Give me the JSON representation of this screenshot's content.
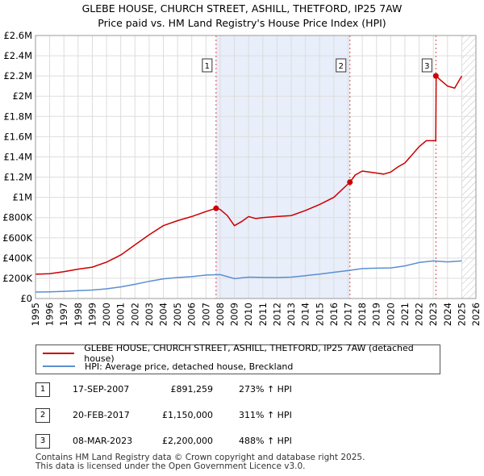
{
  "header": {
    "title": "GLEBE HOUSE, CHURCH STREET, ASHILL, THETFORD, IP25 7AW",
    "subtitle": "Price paid vs. HM Land Registry's House Price Index (HPI)"
  },
  "colors": {
    "property": "#cc0000",
    "hpi": "#5b8fd0",
    "shade": "#e8eefa",
    "grid": "#dddddd"
  },
  "chart_data": {
    "type": "line",
    "title": "GLEBE HOUSE, CHURCH STREET, ASHILL, THETFORD, IP25 7AW",
    "xlim": [
      1995,
      2026
    ],
    "ylim": [
      0,
      2600000
    ],
    "y_ticks": [
      0,
      200000,
      400000,
      600000,
      800000,
      1000000,
      1200000,
      1400000,
      1600000,
      1800000,
      2000000,
      2200000,
      2400000,
      2600000
    ],
    "y_tick_labels": [
      "£0",
      "£200K",
      "£400K",
      "£600K",
      "£800K",
      "£1M",
      "£1.2M",
      "£1.4M",
      "£1.6M",
      "£1.8M",
      "£2M",
      "£2.2M",
      "£2.4M",
      "£2.6M"
    ],
    "x_ticks": [
      "1995",
      "1996",
      "1997",
      "1998",
      "1999",
      "2000",
      "2001",
      "2002",
      "2003",
      "2004",
      "2005",
      "2006",
      "2007",
      "2008",
      "2009",
      "2010",
      "2011",
      "2012",
      "2013",
      "2014",
      "2015",
      "2016",
      "2017",
      "2018",
      "2019",
      "2020",
      "2021",
      "2022",
      "2023",
      "2024",
      "2025",
      "2026"
    ],
    "series": [
      {
        "name": "GLEBE HOUSE, CHURCH STREET, ASHILL, THETFORD, IP25 7AW (detached house)",
        "x": [
          1995,
          1996,
          1997,
          1998,
          1999,
          2000,
          2001,
          2002,
          2003,
          2004,
          2005,
          2006,
          2007,
          2007.71,
          2008,
          2008.5,
          2009,
          2009.5,
          2010,
          2010.5,
          2011,
          2012,
          2013,
          2014,
          2015,
          2016,
          2017.13,
          2017.5,
          2018,
          2019,
          2019.5,
          2020,
          2020.5,
          2021,
          2021.5,
          2022,
          2022.5,
          2023.17,
          2023.2,
          2023.5,
          2024,
          2024.5,
          2025
        ],
        "values": [
          240000,
          245000,
          265000,
          290000,
          310000,
          360000,
          430000,
          530000,
          630000,
          720000,
          770000,
          810000,
          860000,
          891259,
          880000,
          820000,
          720000,
          760000,
          810000,
          790000,
          800000,
          810000,
          820000,
          870000,
          930000,
          1000000,
          1150000,
          1220000,
          1260000,
          1240000,
          1230000,
          1250000,
          1300000,
          1340000,
          1420000,
          1500000,
          1560000,
          1560000,
          2200000,
          2160000,
          2100000,
          2080000,
          2200000
        ]
      },
      {
        "name": "HPI: Average price, detached house, Breckland",
        "x": [
          1995,
          1996,
          1997,
          1998,
          1999,
          2000,
          2001,
          2002,
          2003,
          2004,
          2005,
          2006,
          2007,
          2008,
          2009,
          2010,
          2011,
          2012,
          2013,
          2014,
          2015,
          2016,
          2017,
          2018,
          2019,
          2020,
          2021,
          2022,
          2023,
          2024,
          2025
        ],
        "values": [
          64000,
          66000,
          71000,
          78000,
          84000,
          96000,
          115000,
          140000,
          170000,
          195000,
          207000,
          216000,
          232000,
          236000,
          196000,
          211000,
          208000,
          207000,
          211000,
          226000,
          242000,
          259000,
          276000,
          296000,
          300000,
          302000,
          322000,
          356000,
          372000,
          362000,
          372000
        ]
      }
    ],
    "sales": [
      {
        "label": "1",
        "x": 2007.71,
        "value": 891259
      },
      {
        "label": "2",
        "x": 2017.13,
        "value": 1150000
      },
      {
        "label": "3",
        "x": 2023.18,
        "value": 2200000
      }
    ],
    "shaded_range": [
      2007.71,
      2017.13
    ],
    "hatched_from": 2025
  },
  "legend": {
    "property": "GLEBE HOUSE, CHURCH STREET, ASHILL, THETFORD, IP25 7AW (detached house)",
    "hpi": "HPI: Average price, detached house, Breckland"
  },
  "sales_table": [
    {
      "num": "1",
      "date": "17-SEP-2007",
      "price": "£891,259",
      "hpi": "273% ↑ HPI"
    },
    {
      "num": "2",
      "date": "20-FEB-2017",
      "price": "£1,150,000",
      "hpi": "311% ↑ HPI"
    },
    {
      "num": "3",
      "date": "08-MAR-2023",
      "price": "£2,200,000",
      "hpi": "488% ↑ HPI"
    }
  ],
  "footer": {
    "line1": "Contains HM Land Registry data © Crown copyright and database right 2025.",
    "line2": "This data is licensed under the Open Government Licence v3.0."
  }
}
